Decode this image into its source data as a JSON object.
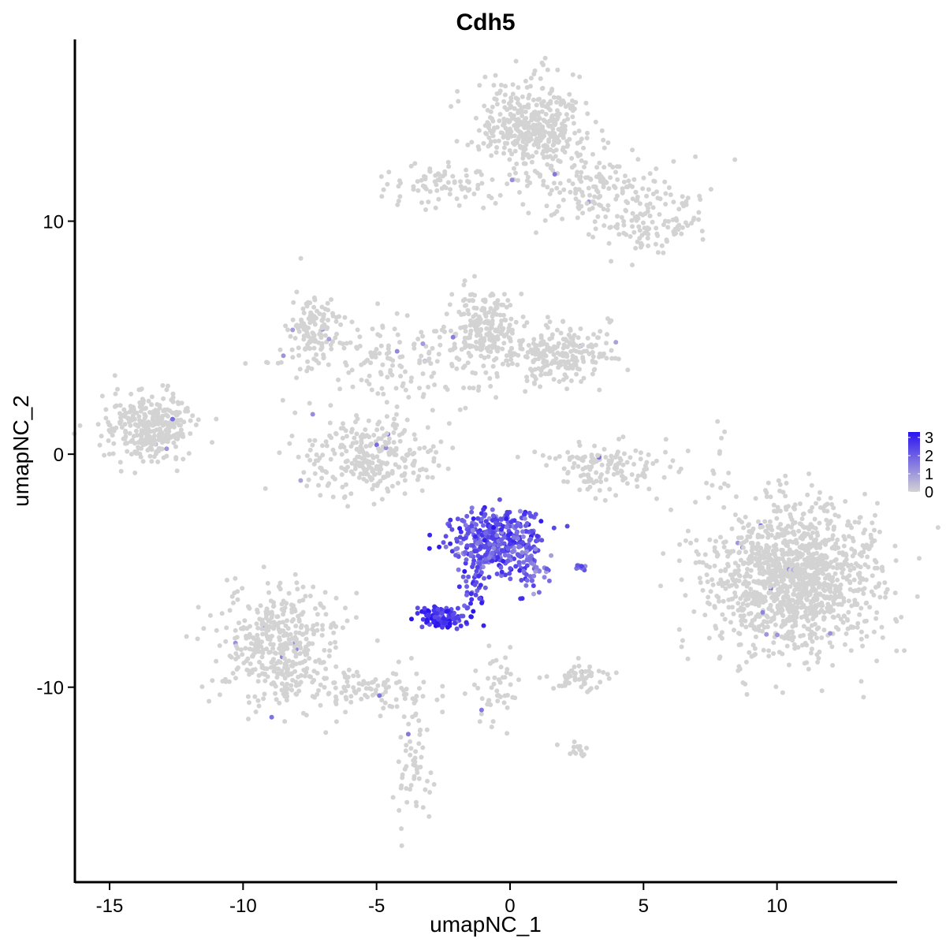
{
  "chart_data": {
    "type": "scatter",
    "title": "Cdh5",
    "xlabel": "umapNC_1",
    "ylabel": "umapNC_2",
    "xlim": [
      -16.3,
      14.5
    ],
    "ylim": [
      -18.4,
      17.8
    ],
    "x_ticks": [
      {
        "value": -15,
        "label": "-15"
      },
      {
        "value": -10,
        "label": "-10"
      },
      {
        "value": -5,
        "label": "-5"
      },
      {
        "value": 0,
        "label": "0"
      },
      {
        "value": 5,
        "label": "5"
      },
      {
        "value": 10,
        "label": "10"
      }
    ],
    "y_ticks": [
      {
        "value": 10,
        "label": "10"
      },
      {
        "value": 0,
        "label": "0"
      },
      {
        "value": -10,
        "label": "-10"
      }
    ],
    "grid": false,
    "legend": {
      "placement": "right",
      "type": "colorbar",
      "labels": [
        {
          "value": 3,
          "label": "3"
        },
        {
          "value": 2,
          "label": "2"
        },
        {
          "value": 1,
          "label": "1"
        },
        {
          "value": 0,
          "label": "0"
        }
      ],
      "min": 0,
      "max": 3.3,
      "low_color": "#d3d3d3",
      "high_color": "#2a13f0"
    },
    "clusters": [
      {
        "id": "top-right-cluster",
        "x": 0.9,
        "y": 14.1,
        "sx": 1.0,
        "sy": 1.0,
        "n": 420,
        "expr": 0
      },
      {
        "id": "top-right-tail",
        "x": 3.6,
        "y": 11.3,
        "sx": 1.6,
        "sy": 0.7,
        "n": 170,
        "expr": 0
      },
      {
        "id": "top-right-arm",
        "x": 5.2,
        "y": 9.6,
        "sx": 0.9,
        "sy": 0.6,
        "n": 90,
        "expr": 0
      },
      {
        "id": "top-left-arm",
        "x": -2.3,
        "y": 11.6,
        "sx": 1.2,
        "sy": 0.5,
        "n": 85,
        "expr": 0
      },
      {
        "id": "upper-mid-cluster",
        "x": -0.9,
        "y": 5.4,
        "sx": 0.7,
        "sy": 0.9,
        "n": 200,
        "expr": 0
      },
      {
        "id": "upper-mid-right",
        "x": 1.8,
        "y": 4.3,
        "sx": 1.1,
        "sy": 0.6,
        "n": 220,
        "expr": 0
      },
      {
        "id": "upper-left-lobe",
        "x": -7.3,
        "y": 5.4,
        "sx": 0.6,
        "sy": 0.8,
        "n": 130,
        "expr": 0
      },
      {
        "id": "upper-left-web",
        "x": -4.0,
        "y": 3.9,
        "sx": 2.0,
        "sy": 1.0,
        "n": 170,
        "expr": 0
      },
      {
        "id": "left-cluster",
        "x": -13.5,
        "y": 1.1,
        "sx": 0.9,
        "sy": 0.7,
        "n": 320,
        "expr": 0
      },
      {
        "id": "mid-left-ring",
        "x": -5.2,
        "y": -0.2,
        "sx": 1.4,
        "sy": 0.8,
        "n": 280,
        "expr": 0
      },
      {
        "id": "mid-right-ring",
        "x": 3.6,
        "y": -0.6,
        "sx": 1.2,
        "sy": 0.6,
        "n": 140,
        "expr": 0
      },
      {
        "id": "right-cluster",
        "x": 10.6,
        "y": -5.3,
        "sx": 1.6,
        "sy": 1.5,
        "n": 1300,
        "expr": 0
      },
      {
        "id": "lower-left-cluster",
        "x": -8.6,
        "y": -8.2,
        "sx": 1.1,
        "sy": 1.2,
        "n": 420,
        "expr": 0
      },
      {
        "id": "lower-left-stream",
        "x": -5.5,
        "y": -10.0,
        "sx": 1.5,
        "sy": 0.5,
        "n": 110,
        "expr": 0
      },
      {
        "id": "lower-left-tail",
        "x": -3.7,
        "y": -13.4,
        "sx": 0.4,
        "sy": 1.4,
        "n": 60,
        "expr": 0
      },
      {
        "id": "lower-center-stream",
        "x": -0.6,
        "y": -10.5,
        "sx": 0.4,
        "sy": 1.1,
        "n": 45,
        "expr": 0
      },
      {
        "id": "lower-center-small",
        "x": 2.5,
        "y": -9.6,
        "sx": 0.5,
        "sy": 0.3,
        "n": 50,
        "expr": 0
      },
      {
        "id": "lower-right-small",
        "x": 2.4,
        "y": -12.7,
        "sx": 0.3,
        "sy": 0.2,
        "n": 16,
        "expr": 0
      },
      {
        "id": "right-stream",
        "x": 7.9,
        "y": -0.1,
        "sx": 0.3,
        "sy": 1.0,
        "n": 14,
        "expr": 0
      },
      {
        "id": "expressing-main",
        "x": -0.5,
        "y": -3.8,
        "sx": 0.9,
        "sy": 0.7,
        "n": 430,
        "expr": 2.2
      },
      {
        "id": "expressing-tail",
        "x": 0.9,
        "y": -4.9,
        "sx": 0.3,
        "sy": 0.5,
        "n": 35,
        "expr": 1.7
      },
      {
        "id": "expressing-stem",
        "x": -1.4,
        "y": -5.9,
        "sx": 0.3,
        "sy": 0.5,
        "n": 30,
        "expr": 2.4
      },
      {
        "id": "expressing-lower",
        "x": -2.5,
        "y": -7.0,
        "sx": 0.4,
        "sy": 0.22,
        "n": 140,
        "expr": 2.7
      },
      {
        "id": "expressing-right",
        "x": 2.7,
        "y": -4.9,
        "sx": 0.18,
        "sy": 0.08,
        "n": 12,
        "expr": 2.0
      }
    ]
  }
}
